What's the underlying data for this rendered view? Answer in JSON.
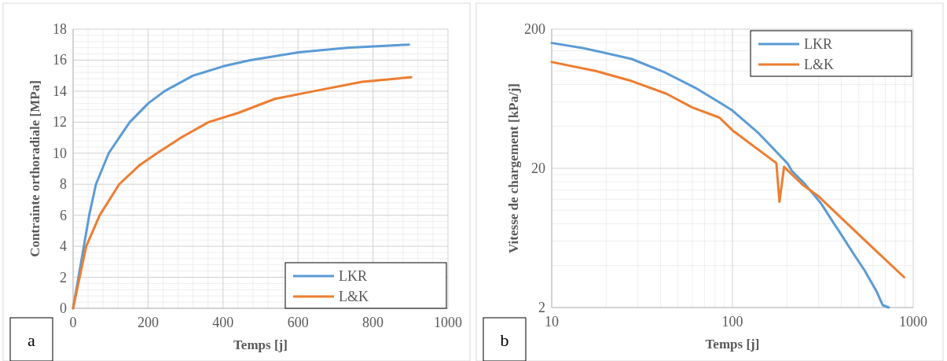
{
  "chart_data": [
    {
      "type": "line",
      "xlabel": "Temps [j]",
      "ylabel": "Contrainte orthoradiale [MPa]",
      "xlim": [
        0,
        1000
      ],
      "xticks": [
        0,
        200,
        400,
        600,
        800,
        1000
      ],
      "ylim": [
        0,
        18
      ],
      "yticks": [
        0,
        2,
        4,
        6,
        8,
        10,
        12,
        14,
        16,
        18
      ],
      "grid": true,
      "legend": "bottom right",
      "line_style": "solid",
      "marker": "none",
      "annotations": [
        "a"
      ],
      "series": [
        {
          "name": "LKR",
          "color": "#5b9bd5",
          "x": [
            0,
            43,
            61,
            95,
            151,
            200,
            244,
            320,
            400,
            473,
            602,
            731,
            896
          ],
          "values": [
            0,
            6,
            8,
            10,
            12,
            13.2,
            14,
            15,
            15.6,
            16,
            16.5,
            16.8,
            17
          ]
        },
        {
          "name": "L&K",
          "color": "#ed7d31",
          "x": [
            0,
            35,
            71,
            123,
            176,
            224,
            288,
            361,
            441,
            538,
            643,
            771,
            902
          ],
          "values": [
            0,
            4,
            6,
            8,
            9.2,
            10,
            11,
            12,
            12.6,
            13.5,
            14,
            14.6,
            14.9
          ]
        }
      ]
    },
    {
      "type": "line",
      "xlabel": "Temps [j]",
      "ylabel": "Vitesse de chargement [kPa/j]",
      "log": "xy",
      "xlim": [
        10,
        1000
      ],
      "xticks": [
        10,
        100,
        1000
      ],
      "ylim": [
        2,
        200
      ],
      "yticks": [
        2,
        20,
        200
      ],
      "grid": true,
      "legend": "top right",
      "line_style": "solid",
      "marker": "none",
      "annotations": [
        "b"
      ],
      "series": [
        {
          "name": "LKR",
          "color": "#5b9bd5",
          "x": [
            10,
            15,
            27.7,
            42.4,
            62.2,
            88.4,
            100,
            140,
            202,
            214,
            250,
            309,
            367,
            388,
            461,
            538,
            628,
            678,
            732
          ],
          "values": [
            159,
            146,
            122,
            97.5,
            75.8,
            57.5,
            52,
            35.6,
            21.6,
            19,
            15.6,
            11.2,
            7.9,
            7.1,
            5,
            3.7,
            2.6,
            2.08,
            2
          ]
        },
        {
          "name": "L&K",
          "color": "#ed7d31",
          "x": [
            10,
            17.5,
            27.7,
            43.2,
            59.9,
            84.7,
            100,
            175,
            182,
            193,
            245,
            297,
            561,
            891
          ],
          "values": [
            116,
            100,
            84.7,
            68.6,
            54.7,
            46.3,
            37.5,
            21.8,
            11.5,
            20.5,
            15.2,
            12.7,
            5.8,
            3.3
          ]
        }
      ]
    }
  ]
}
